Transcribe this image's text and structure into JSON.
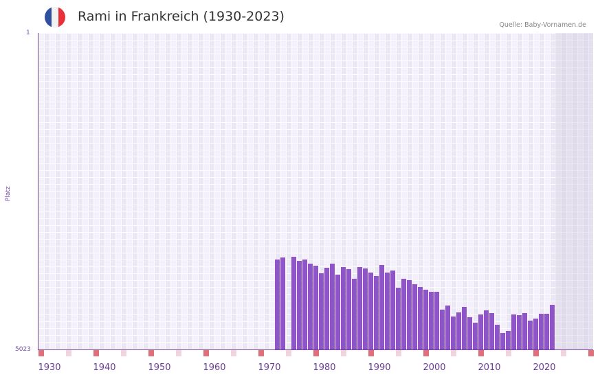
{
  "header": {
    "title": "Rami in Frankreich (1930-2023)",
    "source": "Quelle: Baby-Vornamen.de",
    "flag_colors": [
      "#2f4fa0",
      "#f2f2f2",
      "#e8303a"
    ]
  },
  "axis": {
    "y_label": "Platz",
    "y_top": "1",
    "y_bottom": "5023"
  },
  "colors": {
    "bar": "#8e54c8",
    "axis": "#6a3a96",
    "decade_marker": "#e0717c",
    "half_decade_marker": "#f3d4de"
  },
  "chart_data": {
    "type": "bar",
    "title": "Rami in Frankreich (1930-2023)",
    "xlabel": "",
    "ylabel": "Platz",
    "y_inverted": true,
    "ylim": [
      5023,
      1
    ],
    "x_tick_labels": [
      "1930",
      "1940",
      "1950",
      "1960",
      "1970",
      "1980",
      "1990",
      "2000",
      "2010",
      "2020"
    ],
    "grid": true,
    "categories": [
      1972,
      1973,
      1974,
      1975,
      1976,
      1977,
      1978,
      1979,
      1980,
      1981,
      1982,
      1983,
      1984,
      1985,
      1986,
      1987,
      1988,
      1989,
      1990,
      1991,
      1992,
      1993,
      1994,
      1995,
      1996,
      1997,
      1998,
      1999,
      2000,
      2001,
      2002,
      2003,
      2004,
      2005,
      2006,
      2007,
      2008,
      2009,
      2010,
      2011,
      2012,
      2013,
      2014,
      2015,
      2016,
      2017,
      2018,
      2019,
      2020,
      2021,
      2022
    ],
    "values": [
      3594,
      3561,
      null,
      3550,
      3616,
      3594,
      3660,
      3692,
      3812,
      3725,
      3660,
      3834,
      3714,
      3747,
      3900,
      3714,
      3736,
      3801,
      3856,
      3681,
      3801,
      3769,
      4042,
      3900,
      3922,
      3987,
      4031,
      4075,
      4107,
      4107,
      4391,
      4326,
      4500,
      4435,
      4347,
      4511,
      4599,
      4468,
      4402,
      4446,
      4631,
      4762,
      4729,
      4468,
      4479,
      4446,
      4566,
      4533,
      4457,
      4457,
      4315
    ]
  }
}
